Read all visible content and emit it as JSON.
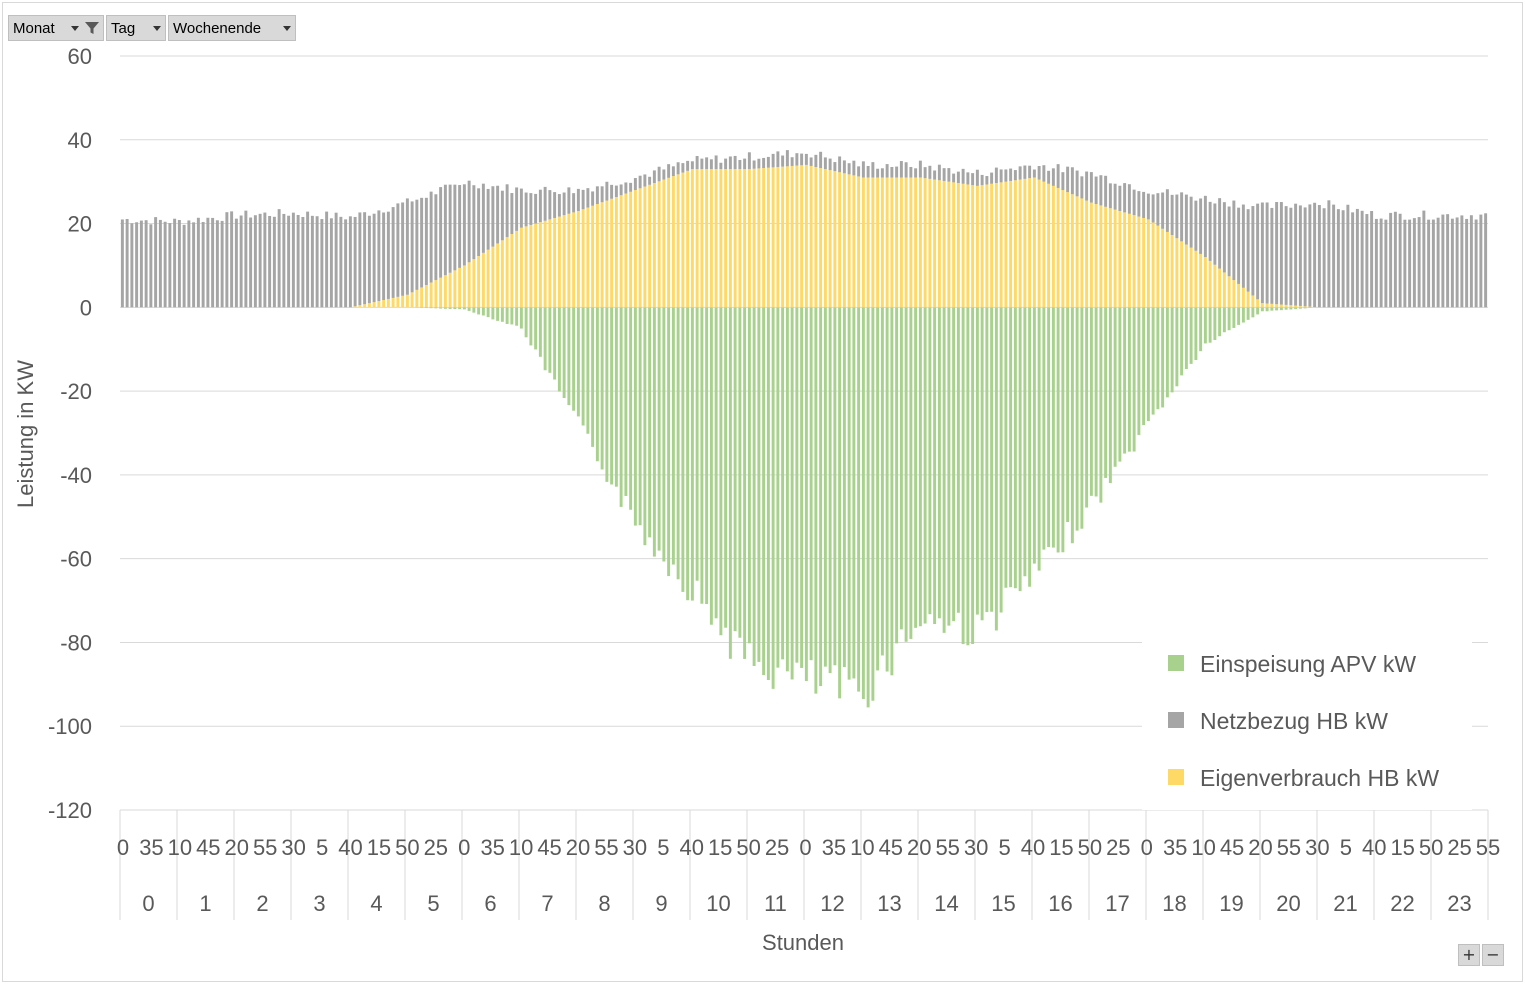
{
  "filters": [
    {
      "label": "Monat",
      "icon": "filter-funnel-icon"
    },
    {
      "label": "Tag",
      "icon": "dropdown-arrow-icon"
    },
    {
      "label": "Wochenende",
      "icon": "dropdown-arrow-icon"
    }
  ],
  "zoom": {
    "plus": "+",
    "minus": "−"
  },
  "colors": {
    "einspeisung": "#a9d18e",
    "netzbezug": "#a5a5a5",
    "eigenverbrauch": "#ffd966",
    "grid": "#d9d9d9",
    "text": "#595959"
  },
  "chart_data": {
    "type": "bar",
    "stacked": true,
    "title": "",
    "xlabel": "Stunden",
    "ylabel": "Leistung in KW",
    "ylim": [
      -120,
      60
    ],
    "yticks": [
      60,
      40,
      20,
      0,
      -20,
      -40,
      -60,
      -80,
      -100,
      -120
    ],
    "grid": true,
    "legend_position": "bottom-right",
    "x_groups": [
      "0",
      "1",
      "2",
      "3",
      "4",
      "5",
      "6",
      "7",
      "8",
      "9",
      "10",
      "11",
      "12",
      "13",
      "14",
      "15",
      "16",
      "17",
      "18",
      "19",
      "20",
      "21",
      "22",
      "23"
    ],
    "minute_tick_labels": [
      "0",
      "35",
      "10",
      "45",
      "20",
      "55",
      "30",
      "5",
      "40",
      "15",
      "50",
      "25",
      "0",
      "35",
      "10",
      "45",
      "20",
      "55",
      "30",
      "5",
      "40",
      "15",
      "50",
      "25",
      "0",
      "35",
      "10",
      "45",
      "20",
      "55",
      "30",
      "5",
      "40",
      "15",
      "50",
      "25",
      "0",
      "35",
      "10",
      "45",
      "20",
      "55",
      "30",
      "5",
      "40",
      "15",
      "50",
      "25",
      "55"
    ],
    "series": [
      {
        "name": "Einspeisung APV kW",
        "hourly_profile": [
          0,
          0,
          0,
          0,
          0,
          0,
          -0.5,
          -5,
          -28,
          -52,
          -68,
          -86,
          -90,
          -93,
          -75,
          -78,
          -65,
          -48,
          -28,
          -9,
          -1,
          0,
          0,
          0
        ]
      },
      {
        "name": "Netzbezug HB kW",
        "hourly_profile": [
          21,
          20.5,
          22,
          22.5,
          21.5,
          22,
          20,
          9,
          5,
          3,
          2,
          3,
          3,
          3,
          3,
          3,
          3,
          7,
          7,
          14,
          23,
          25,
          22,
          22
        ]
      },
      {
        "name": "Eigenverbrauch HB kW",
        "hourly_profile": [
          0,
          0,
          0,
          0,
          0,
          3,
          10,
          19,
          23,
          28,
          33,
          33,
          34,
          31,
          31,
          29,
          31,
          25,
          21,
          12,
          1,
          0,
          0,
          0
        ]
      }
    ]
  }
}
